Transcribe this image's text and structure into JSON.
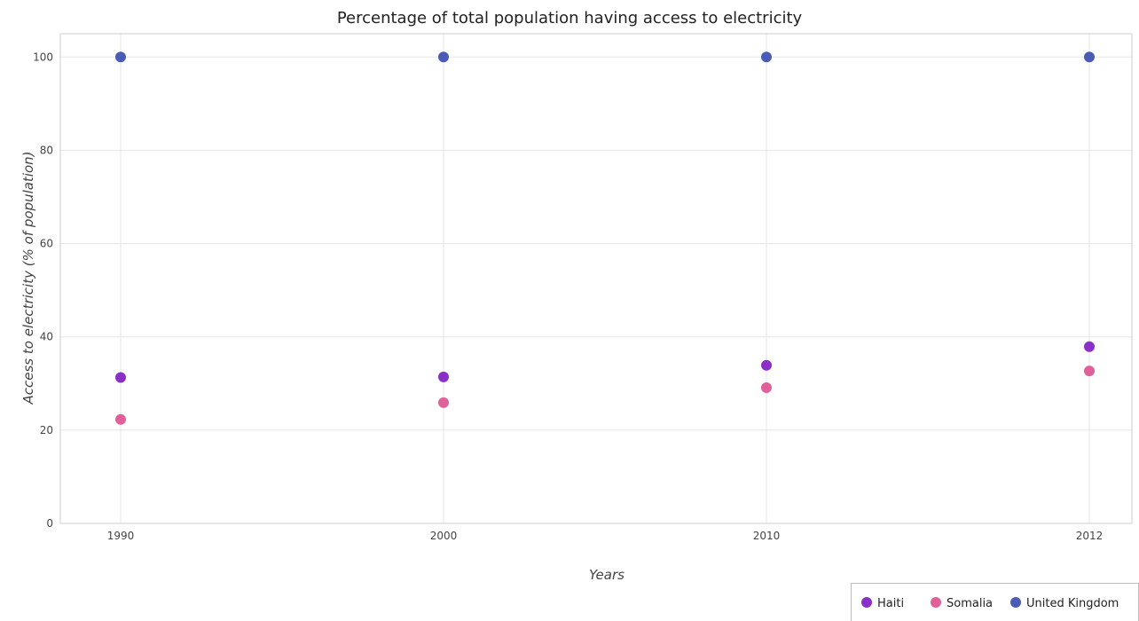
{
  "chart_data": {
    "type": "scatter",
    "title": "Percentage of total population having access to electricity",
    "xlabel": "Years",
    "ylabel": "Access to electricity (% of population)",
    "categories": [
      "1990",
      "2000",
      "2010",
      "2012"
    ],
    "ylim": [
      0,
      105
    ],
    "yticks": [
      0,
      20,
      40,
      60,
      80,
      100
    ],
    "grid": true,
    "legend_position": "bottom-right",
    "series": [
      {
        "name": "Haiti",
        "color": "#8b2fc9",
        "values": [
          31.3,
          31.4,
          33.9,
          37.9
        ]
      },
      {
        "name": "Somalia",
        "color": "#e0609a",
        "values": [
          22.3,
          25.9,
          29.1,
          32.7
        ]
      },
      {
        "name": "United Kingdom",
        "color": "#4a5cb5",
        "values": [
          100,
          100,
          100,
          100
        ]
      }
    ]
  }
}
